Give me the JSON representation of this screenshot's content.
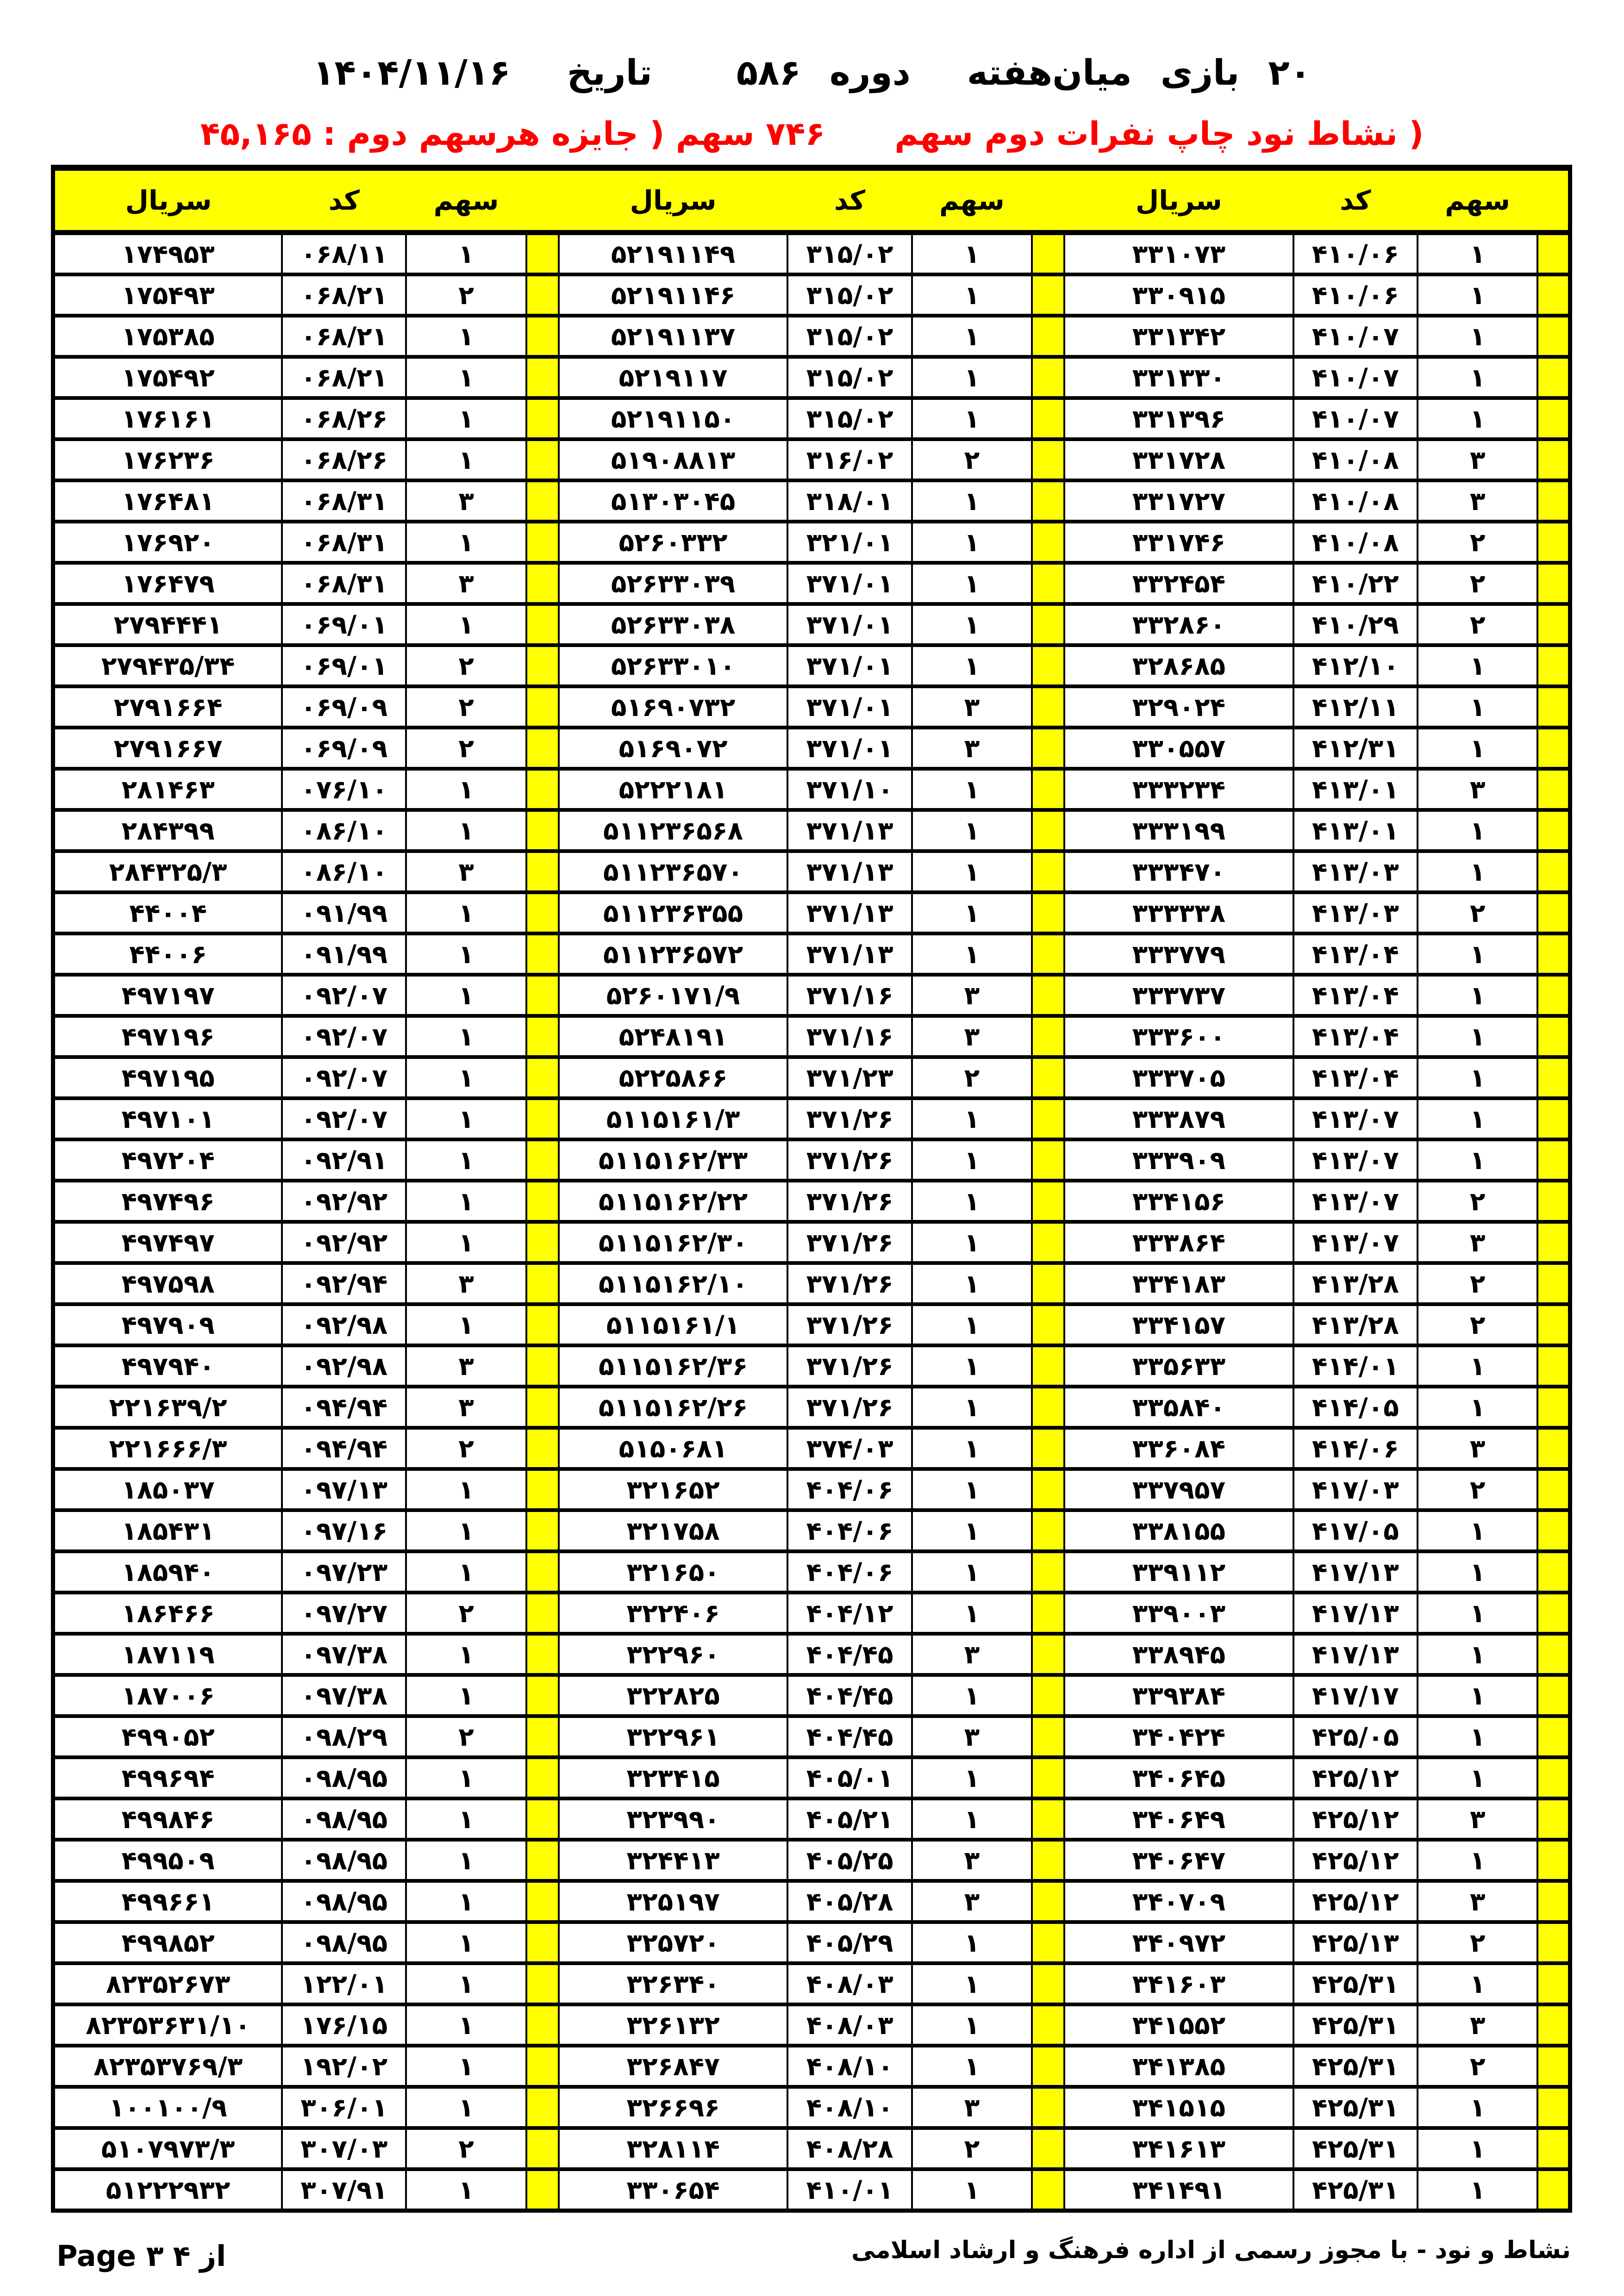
{
  "digits_style": "persian",
  "colors": {
    "highlight": "#ffff00",
    "subtitle": "#ff0000",
    "text": "#000000",
    "background": "#ffffff"
  },
  "header": {
    "games_count": "20",
    "games_label": "بازی",
    "midweek_label": "میان‌هفته",
    "round_label": "دوره",
    "round_number": "586",
    "date_label": "تاریخ",
    "date_value": "1404/11/16",
    "subtitle_right": "( نشاط نود  چاپ نفرات دوم سهم",
    "subtitle_left": "746 سهم ( جایزه هرسهم دوم : 45,165"
  },
  "table": {
    "column_headers": {
      "serial": "سريال",
      "code": "كد",
      "share": "سهم"
    },
    "columns_ltr": [
      "serial",
      "code",
      "share",
      "sep",
      "serial",
      "code",
      "share",
      "sep",
      "serial",
      "code",
      "share",
      "edge"
    ],
    "rows": [
      [
        "174953",
        "068/11",
        "1",
        "52191149",
        "315/02",
        "1",
        "331073",
        "410/06",
        "1"
      ],
      [
        "175493",
        "068/21",
        "2",
        "52191146",
        "315/02",
        "1",
        "330915",
        "410/06",
        "1"
      ],
      [
        "175385",
        "068/21",
        "1",
        "52191137",
        "315/02",
        "1",
        "331342",
        "410/07",
        "1"
      ],
      [
        "175492",
        "068/21",
        "1",
        "5219117",
        "315/02",
        "1",
        "331330",
        "410/07",
        "1"
      ],
      [
        "176161",
        "068/26",
        "1",
        "52191150",
        "315/02",
        "1",
        "331396",
        "410/07",
        "1"
      ],
      [
        "176236",
        "068/26",
        "1",
        "51908813",
        "316/02",
        "2",
        "331728",
        "410/08",
        "3"
      ],
      [
        "176481",
        "068/31",
        "3",
        "51303045",
        "318/01",
        "1",
        "331727",
        "410/08",
        "3"
      ],
      [
        "176920",
        "068/31",
        "1",
        "5260332",
        "321/01",
        "1",
        "331746",
        "410/08",
        "2"
      ],
      [
        "176479",
        "068/31",
        "3",
        "52633039",
        "371/01",
        "1",
        "332454",
        "410/22",
        "2"
      ],
      [
        "2794441",
        "069/01",
        "1",
        "52633038",
        "371/01",
        "1",
        "332860",
        "410/29",
        "2"
      ],
      [
        "279435/34",
        "069/01",
        "2",
        "52633010",
        "371/01",
        "1",
        "328685",
        "412/10",
        "1"
      ],
      [
        "2791664",
        "069/09",
        "2",
        "51690732",
        "371/01",
        "3",
        "329024",
        "412/11",
        "1"
      ],
      [
        "2791667",
        "069/09",
        "2",
        "5169072",
        "371/01",
        "3",
        "330557",
        "412/31",
        "1"
      ],
      [
        "281463",
        "076/10",
        "1",
        "5222181",
        "371/10",
        "1",
        "333234",
        "413/01",
        "3"
      ],
      [
        "284399",
        "086/10",
        "1",
        "511236568",
        "371/13",
        "1",
        "333199",
        "413/01",
        "1"
      ],
      [
        "284325/3",
        "086/10",
        "3",
        "511236570",
        "371/13",
        "1",
        "333470",
        "413/03",
        "1"
      ],
      [
        "44004",
        "091/99",
        "1",
        "511236355",
        "371/13",
        "1",
        "333338",
        "413/03",
        "2"
      ],
      [
        "44006",
        "091/99",
        "1",
        "511236572",
        "371/13",
        "1",
        "333779",
        "413/04",
        "1"
      ],
      [
        "497197",
        "092/07",
        "1",
        "5260171/9",
        "371/16",
        "3",
        "333737",
        "413/04",
        "1"
      ],
      [
        "497196",
        "092/07",
        "1",
        "5248191",
        "371/16",
        "3",
        "333600",
        "413/04",
        "1"
      ],
      [
        "497195",
        "092/07",
        "1",
        "5225866",
        "371/23",
        "2",
        "333705",
        "413/04",
        "1"
      ],
      [
        "497101",
        "092/07",
        "1",
        "5115161/3",
        "371/26",
        "1",
        "333879",
        "413/07",
        "1"
      ],
      [
        "497204",
        "092/91",
        "1",
        "5115162/33",
        "371/26",
        "1",
        "333909",
        "413/07",
        "1"
      ],
      [
        "497496",
        "092/92",
        "1",
        "5115162/22",
        "371/26",
        "1",
        "334156",
        "413/07",
        "2"
      ],
      [
        "497497",
        "092/92",
        "1",
        "5115162/30",
        "371/26",
        "1",
        "333864",
        "413/07",
        "3"
      ],
      [
        "497598",
        "092/94",
        "3",
        "5115162/10",
        "371/26",
        "1",
        "334183",
        "413/28",
        "2"
      ],
      [
        "497909",
        "092/98",
        "1",
        "5115161/1",
        "371/26",
        "1",
        "334157",
        "413/28",
        "2"
      ],
      [
        "497940",
        "092/98",
        "3",
        "5115162/36",
        "371/26",
        "1",
        "335633",
        "414/01",
        "1"
      ],
      [
        "221639/2",
        "094/94",
        "3",
        "5115162/26",
        "371/26",
        "1",
        "335840",
        "414/05",
        "1"
      ],
      [
        "221666/3",
        "094/94",
        "2",
        "5150681",
        "374/03",
        "1",
        "336084",
        "414/06",
        "3"
      ],
      [
        "185037",
        "097/13",
        "1",
        "321652",
        "404/06",
        "1",
        "337957",
        "417/03",
        "2"
      ],
      [
        "185431",
        "097/16",
        "1",
        "321758",
        "404/06",
        "1",
        "338155",
        "417/05",
        "1"
      ],
      [
        "185940",
        "097/23",
        "1",
        "321650",
        "404/06",
        "1",
        "339112",
        "417/13",
        "1"
      ],
      [
        "186466",
        "097/27",
        "2",
        "322406",
        "404/12",
        "1",
        "339003",
        "417/13",
        "1"
      ],
      [
        "187119",
        "097/38",
        "1",
        "322960",
        "404/45",
        "3",
        "338945",
        "417/13",
        "1"
      ],
      [
        "187006",
        "097/38",
        "1",
        "322825",
        "404/45",
        "1",
        "339384",
        "417/17",
        "1"
      ],
      [
        "499052",
        "098/29",
        "2",
        "322961",
        "404/45",
        "3",
        "340424",
        "425/05",
        "1"
      ],
      [
        "499694",
        "098/95",
        "1",
        "323415",
        "405/01",
        "1",
        "340645",
        "425/12",
        "1"
      ],
      [
        "499846",
        "098/95",
        "1",
        "323990",
        "405/21",
        "1",
        "340649",
        "425/12",
        "3"
      ],
      [
        "499509",
        "098/95",
        "1",
        "324413",
        "405/25",
        "3",
        "340647",
        "425/12",
        "1"
      ],
      [
        "499661",
        "098/95",
        "1",
        "325197",
        "405/28",
        "3",
        "340709",
        "425/12",
        "3"
      ],
      [
        "499852",
        "098/95",
        "1",
        "325720",
        "405/29",
        "1",
        "340972",
        "425/13",
        "2"
      ],
      [
        "82352673",
        "122/01",
        "1",
        "326340",
        "408/03",
        "1",
        "341603",
        "425/31",
        "1"
      ],
      [
        "82353631/10",
        "176/15",
        "1",
        "326132",
        "408/03",
        "1",
        "341552",
        "425/31",
        "3"
      ],
      [
        "82353769/3",
        "192/02",
        "1",
        "326847",
        "408/10",
        "1",
        "341385",
        "425/31",
        "2"
      ],
      [
        "100100/9",
        "306/01",
        "1",
        "326696",
        "408/10",
        "3",
        "341515",
        "425/31",
        "1"
      ],
      [
        "5107973/3",
        "307/03",
        "2",
        "328114",
        "408/28",
        "2",
        "341613",
        "425/31",
        "1"
      ],
      [
        "51222932",
        "307/91",
        "1",
        "330654",
        "410/01",
        "1",
        "341491",
        "425/31",
        "1"
      ]
    ]
  },
  "footer": {
    "license_text": "نشاط و نود - با مجوز رسمی از اداره فرهنگ و ارشاد اسلامی",
    "page_tokens": [
      "Page 3",
      "4",
      "از"
    ]
  }
}
